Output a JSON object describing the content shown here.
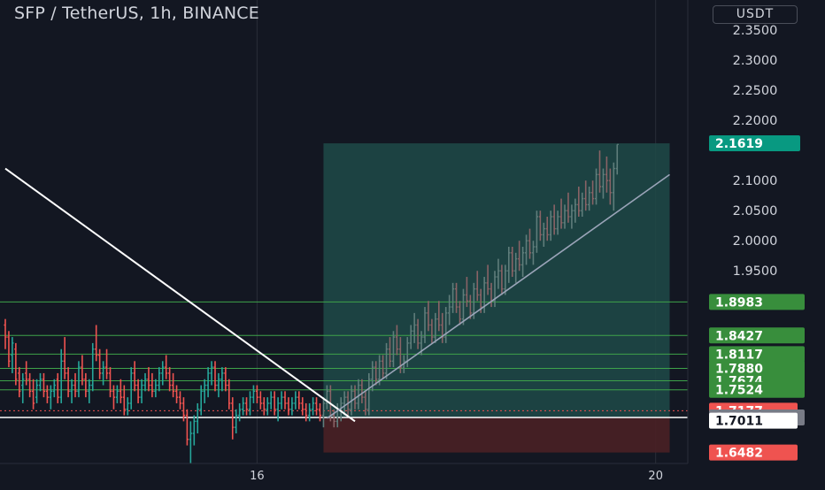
{
  "header": {
    "title": "SFP / TetherUS, 1h, BINANCE",
    "currency": "USDT"
  },
  "chart_data": {
    "type": "candlestick",
    "symbol": "SFP / TetherUS",
    "interval": "1h",
    "exchange": "BINANCE",
    "ylim": [
      1.63,
      2.4
    ],
    "y_ticks": [
      2.35,
      2.3,
      2.25,
      2.2,
      2.1,
      2.05,
      2.0,
      1.95
    ],
    "x_ticks": [
      {
        "label": "16",
        "index": 72
      },
      {
        "label": "20",
        "index": 186
      }
    ],
    "current_price": {
      "value": 2.1619,
      "label": "2.1619"
    },
    "level_labels": [
      {
        "value": 1.8983,
        "label": "1.8983"
      },
      {
        "value": 1.8427,
        "label": "1.8427"
      },
      {
        "value": 1.8117,
        "label": "1.8117"
      },
      {
        "value": 1.788,
        "label": "1.7880"
      },
      {
        "value": 1.7674,
        "label": "1.7674"
      },
      {
        "value": 1.7524,
        "label": "1.7524"
      },
      {
        "value": 1.7177,
        "label": "1.7177"
      },
      {
        "value": 1.7064,
        "label": "1.7064"
      },
      {
        "value": 1.7011,
        "label": "1.7011"
      },
      {
        "value": 1.6482,
        "label": "1.6482"
      }
    ],
    "horizontal_levels": [
      1.8983,
      1.8427,
      1.8117,
      1.788,
      1.7674,
      1.7524
    ],
    "entry_level": 1.7064,
    "dotted_level": 1.7177,
    "position": {
      "entry": 1.7064,
      "target": 2.1619,
      "stop": 1.6482,
      "start_index": 91,
      "end_index": 190
    },
    "downtrend_line": {
      "start": {
        "index": 0,
        "price": 2.12
      },
      "end": {
        "index": 100,
        "price": 1.7
      }
    },
    "uptrend_line": {
      "start": {
        "index": 92,
        "price": 1.705
      },
      "end": {
        "index": 190,
        "price": 2.11
      }
    },
    "colors": {
      "background": "#131722",
      "up": "#26a69a",
      "down": "#ef5350",
      "level_line": "#3ea34a",
      "level_label": "#388e3c",
      "profit_zone": "#1f4a48",
      "loss_zone": "#4a2025",
      "current_price": "#089981",
      "entry_label": "#787b86",
      "text": "#d1d4dc"
    },
    "candles": [
      {
        "o": 1.86,
        "h": 1.87,
        "l": 1.82,
        "c": 1.84
      },
      {
        "o": 1.84,
        "h": 1.85,
        "l": 1.79,
        "c": 1.8
      },
      {
        "o": 1.81,
        "h": 1.84,
        "l": 1.78,
        "c": 1.83
      },
      {
        "o": 1.82,
        "h": 1.83,
        "l": 1.76,
        "c": 1.77
      },
      {
        "o": 1.78,
        "h": 1.79,
        "l": 1.74,
        "c": 1.75
      },
      {
        "o": 1.76,
        "h": 1.78,
        "l": 1.73,
        "c": 1.77
      },
      {
        "o": 1.78,
        "h": 1.8,
        "l": 1.76,
        "c": 1.77
      },
      {
        "o": 1.77,
        "h": 1.78,
        "l": 1.74,
        "c": 1.75
      },
      {
        "o": 1.75,
        "h": 1.77,
        "l": 1.72,
        "c": 1.73
      },
      {
        "o": 1.74,
        "h": 1.77,
        "l": 1.73,
        "c": 1.76
      },
      {
        "o": 1.76,
        "h": 1.78,
        "l": 1.75,
        "c": 1.77
      },
      {
        "o": 1.77,
        "h": 1.78,
        "l": 1.74,
        "c": 1.75
      },
      {
        "o": 1.75,
        "h": 1.76,
        "l": 1.73,
        "c": 1.74
      },
      {
        "o": 1.74,
        "h": 1.76,
        "l": 1.72,
        "c": 1.75
      },
      {
        "o": 1.75,
        "h": 1.77,
        "l": 1.74,
        "c": 1.76
      },
      {
        "o": 1.77,
        "h": 1.78,
        "l": 1.73,
        "c": 1.74
      },
      {
        "o": 1.74,
        "h": 1.82,
        "l": 1.73,
        "c": 1.8
      },
      {
        "o": 1.8,
        "h": 1.84,
        "l": 1.77,
        "c": 1.78
      },
      {
        "o": 1.78,
        "h": 1.79,
        "l": 1.74,
        "c": 1.75
      },
      {
        "o": 1.75,
        "h": 1.77,
        "l": 1.73,
        "c": 1.76
      },
      {
        "o": 1.76,
        "h": 1.78,
        "l": 1.74,
        "c": 1.75
      },
      {
        "o": 1.75,
        "h": 1.8,
        "l": 1.74,
        "c": 1.79
      },
      {
        "o": 1.79,
        "h": 1.81,
        "l": 1.76,
        "c": 1.77
      },
      {
        "o": 1.77,
        "h": 1.78,
        "l": 1.74,
        "c": 1.75
      },
      {
        "o": 1.75,
        "h": 1.77,
        "l": 1.73,
        "c": 1.76
      },
      {
        "o": 1.76,
        "h": 1.83,
        "l": 1.75,
        "c": 1.82
      },
      {
        "o": 1.82,
        "h": 1.86,
        "l": 1.8,
        "c": 1.81
      },
      {
        "o": 1.81,
        "h": 1.82,
        "l": 1.77,
        "c": 1.78
      },
      {
        "o": 1.78,
        "h": 1.8,
        "l": 1.76,
        "c": 1.79
      },
      {
        "o": 1.79,
        "h": 1.82,
        "l": 1.77,
        "c": 1.78
      },
      {
        "o": 1.78,
        "h": 1.79,
        "l": 1.74,
        "c": 1.75
      },
      {
        "o": 1.75,
        "h": 1.76,
        "l": 1.72,
        "c": 1.74
      },
      {
        "o": 1.74,
        "h": 1.76,
        "l": 1.73,
        "c": 1.75
      },
      {
        "o": 1.75,
        "h": 1.77,
        "l": 1.73,
        "c": 1.74
      },
      {
        "o": 1.74,
        "h": 1.76,
        "l": 1.71,
        "c": 1.72
      },
      {
        "o": 1.72,
        "h": 1.74,
        "l": 1.71,
        "c": 1.73
      },
      {
        "o": 1.73,
        "h": 1.79,
        "l": 1.72,
        "c": 1.78
      },
      {
        "o": 1.78,
        "h": 1.8,
        "l": 1.75,
        "c": 1.76
      },
      {
        "o": 1.76,
        "h": 1.77,
        "l": 1.73,
        "c": 1.74
      },
      {
        "o": 1.74,
        "h": 1.77,
        "l": 1.73,
        "c": 1.76
      },
      {
        "o": 1.76,
        "h": 1.78,
        "l": 1.75,
        "c": 1.77
      },
      {
        "o": 1.77,
        "h": 1.79,
        "l": 1.75,
        "c": 1.76
      },
      {
        "o": 1.76,
        "h": 1.78,
        "l": 1.74,
        "c": 1.75
      },
      {
        "o": 1.75,
        "h": 1.77,
        "l": 1.74,
        "c": 1.76
      },
      {
        "o": 1.76,
        "h": 1.79,
        "l": 1.75,
        "c": 1.78
      },
      {
        "o": 1.78,
        "h": 1.8,
        "l": 1.76,
        "c": 1.79
      },
      {
        "o": 1.79,
        "h": 1.81,
        "l": 1.77,
        "c": 1.78
      },
      {
        "o": 1.78,
        "h": 1.79,
        "l": 1.75,
        "c": 1.76
      },
      {
        "o": 1.76,
        "h": 1.78,
        "l": 1.74,
        "c": 1.75
      },
      {
        "o": 1.75,
        "h": 1.76,
        "l": 1.73,
        "c": 1.74
      },
      {
        "o": 1.74,
        "h": 1.75,
        "l": 1.72,
        "c": 1.73
      },
      {
        "o": 1.73,
        "h": 1.74,
        "l": 1.7,
        "c": 1.71
      },
      {
        "o": 1.71,
        "h": 1.72,
        "l": 1.66,
        "c": 1.67
      },
      {
        "o": 1.67,
        "h": 1.7,
        "l": 1.63,
        "c": 1.68
      },
      {
        "o": 1.68,
        "h": 1.71,
        "l": 1.66,
        "c": 1.7
      },
      {
        "o": 1.7,
        "h": 1.73,
        "l": 1.68,
        "c": 1.72
      },
      {
        "o": 1.72,
        "h": 1.76,
        "l": 1.71,
        "c": 1.75
      },
      {
        "o": 1.75,
        "h": 1.77,
        "l": 1.73,
        "c": 1.76
      },
      {
        "o": 1.76,
        "h": 1.79,
        "l": 1.74,
        "c": 1.78
      },
      {
        "o": 1.78,
        "h": 1.8,
        "l": 1.76,
        "c": 1.79
      },
      {
        "o": 1.79,
        "h": 1.8,
        "l": 1.75,
        "c": 1.76
      },
      {
        "o": 1.76,
        "h": 1.78,
        "l": 1.74,
        "c": 1.77
      },
      {
        "o": 1.77,
        "h": 1.79,
        "l": 1.75,
        "c": 1.78
      },
      {
        "o": 1.78,
        "h": 1.79,
        "l": 1.75,
        "c": 1.76
      },
      {
        "o": 1.76,
        "h": 1.77,
        "l": 1.72,
        "c": 1.73
      },
      {
        "o": 1.73,
        "h": 1.74,
        "l": 1.67,
        "c": 1.69
      },
      {
        "o": 1.69,
        "h": 1.72,
        "l": 1.68,
        "c": 1.71
      },
      {
        "o": 1.71,
        "h": 1.73,
        "l": 1.7,
        "c": 1.72
      },
      {
        "o": 1.72,
        "h": 1.74,
        "l": 1.71,
        "c": 1.73
      },
      {
        "o": 1.73,
        "h": 1.74,
        "l": 1.71,
        "c": 1.72
      },
      {
        "o": 1.72,
        "h": 1.75,
        "l": 1.71,
        "c": 1.74
      },
      {
        "o": 1.74,
        "h": 1.76,
        "l": 1.73,
        "c": 1.75
      },
      {
        "o": 1.75,
        "h": 1.76,
        "l": 1.73,
        "c": 1.74
      },
      {
        "o": 1.74,
        "h": 1.75,
        "l": 1.72,
        "c": 1.73
      },
      {
        "o": 1.73,
        "h": 1.74,
        "l": 1.71,
        "c": 1.72
      },
      {
        "o": 1.72,
        "h": 1.74,
        "l": 1.71,
        "c": 1.73
      },
      {
        "o": 1.73,
        "h": 1.75,
        "l": 1.72,
        "c": 1.74
      },
      {
        "o": 1.74,
        "h": 1.75,
        "l": 1.71,
        "c": 1.72
      },
      {
        "o": 1.72,
        "h": 1.74,
        "l": 1.7,
        "c": 1.73
      },
      {
        "o": 1.73,
        "h": 1.75,
        "l": 1.72,
        "c": 1.74
      },
      {
        "o": 1.74,
        "h": 1.75,
        "l": 1.72,
        "c": 1.73
      },
      {
        "o": 1.73,
        "h": 1.74,
        "l": 1.71,
        "c": 1.72
      },
      {
        "o": 1.72,
        "h": 1.74,
        "l": 1.71,
        "c": 1.73
      },
      {
        "o": 1.73,
        "h": 1.75,
        "l": 1.72,
        "c": 1.74
      },
      {
        "o": 1.74,
        "h": 1.75,
        "l": 1.72,
        "c": 1.73
      },
      {
        "o": 1.73,
        "h": 1.74,
        "l": 1.71,
        "c": 1.72
      },
      {
        "o": 1.72,
        "h": 1.73,
        "l": 1.7,
        "c": 1.71
      },
      {
        "o": 1.71,
        "h": 1.73,
        "l": 1.7,
        "c": 1.72
      },
      {
        "o": 1.72,
        "h": 1.74,
        "l": 1.71,
        "c": 1.73
      },
      {
        "o": 1.73,
        "h": 1.74,
        "l": 1.71,
        "c": 1.72
      },
      {
        "o": 1.72,
        "h": 1.73,
        "l": 1.7,
        "c": 1.71
      },
      {
        "o": 1.71,
        "h": 1.74,
        "l": 1.69,
        "c": 1.73
      },
      {
        "o": 1.73,
        "h": 1.76,
        "l": 1.72,
        "c": 1.75
      },
      {
        "o": 1.75,
        "h": 1.76,
        "l": 1.7,
        "c": 1.71
      },
      {
        "o": 1.71,
        "h": 1.72,
        "l": 1.69,
        "c": 1.7
      },
      {
        "o": 1.7,
        "h": 1.73,
        "l": 1.69,
        "c": 1.72
      },
      {
        "o": 1.72,
        "h": 1.74,
        "l": 1.7,
        "c": 1.73
      },
      {
        "o": 1.73,
        "h": 1.75,
        "l": 1.71,
        "c": 1.74
      },
      {
        "o": 1.74,
        "h": 1.75,
        "l": 1.71,
        "c": 1.72
      },
      {
        "o": 1.72,
        "h": 1.76,
        "l": 1.71,
        "c": 1.75
      },
      {
        "o": 1.75,
        "h": 1.76,
        "l": 1.72,
        "c": 1.73
      },
      {
        "o": 1.73,
        "h": 1.77,
        "l": 1.72,
        "c": 1.76
      },
      {
        "o": 1.76,
        "h": 1.77,
        "l": 1.73,
        "c": 1.74
      },
      {
        "o": 1.74,
        "h": 1.75,
        "l": 1.71,
        "c": 1.72
      },
      {
        "o": 1.72,
        "h": 1.78,
        "l": 1.71,
        "c": 1.77
      },
      {
        "o": 1.77,
        "h": 1.8,
        "l": 1.75,
        "c": 1.79
      },
      {
        "o": 1.79,
        "h": 1.8,
        "l": 1.76,
        "c": 1.77
      },
      {
        "o": 1.77,
        "h": 1.81,
        "l": 1.76,
        "c": 1.8
      },
      {
        "o": 1.8,
        "h": 1.81,
        "l": 1.77,
        "c": 1.78
      },
      {
        "o": 1.78,
        "h": 1.83,
        "l": 1.77,
        "c": 1.82
      },
      {
        "o": 1.82,
        "h": 1.84,
        "l": 1.79,
        "c": 1.8
      },
      {
        "o": 1.8,
        "h": 1.85,
        "l": 1.79,
        "c": 1.84
      },
      {
        "o": 1.84,
        "h": 1.86,
        "l": 1.81,
        "c": 1.82
      },
      {
        "o": 1.82,
        "h": 1.84,
        "l": 1.78,
        "c": 1.79
      },
      {
        "o": 1.79,
        "h": 1.81,
        "l": 1.78,
        "c": 1.8
      },
      {
        "o": 1.8,
        "h": 1.84,
        "l": 1.79,
        "c": 1.83
      },
      {
        "o": 1.83,
        "h": 1.86,
        "l": 1.82,
        "c": 1.85
      },
      {
        "o": 1.85,
        "h": 1.88,
        "l": 1.83,
        "c": 1.86
      },
      {
        "o": 1.86,
        "h": 1.87,
        "l": 1.82,
        "c": 1.83
      },
      {
        "o": 1.83,
        "h": 1.85,
        "l": 1.81,
        "c": 1.84
      },
      {
        "o": 1.84,
        "h": 1.89,
        "l": 1.83,
        "c": 1.88
      },
      {
        "o": 1.88,
        "h": 1.9,
        "l": 1.85,
        "c": 1.86
      },
      {
        "o": 1.86,
        "h": 1.87,
        "l": 1.83,
        "c": 1.84
      },
      {
        "o": 1.84,
        "h": 1.88,
        "l": 1.83,
        "c": 1.87
      },
      {
        "o": 1.87,
        "h": 1.9,
        "l": 1.85,
        "c": 1.86
      },
      {
        "o": 1.86,
        "h": 1.88,
        "l": 1.83,
        "c": 1.84
      },
      {
        "o": 1.84,
        "h": 1.89,
        "l": 1.83,
        "c": 1.88
      },
      {
        "o": 1.88,
        "h": 1.91,
        "l": 1.86,
        "c": 1.89
      },
      {
        "o": 1.89,
        "h": 1.93,
        "l": 1.88,
        "c": 1.92
      },
      {
        "o": 1.92,
        "h": 1.93,
        "l": 1.88,
        "c": 1.89
      },
      {
        "o": 1.89,
        "h": 1.9,
        "l": 1.86,
        "c": 1.87
      },
      {
        "o": 1.87,
        "h": 1.92,
        "l": 1.86,
        "c": 1.91
      },
      {
        "o": 1.91,
        "h": 1.94,
        "l": 1.89,
        "c": 1.9
      },
      {
        "o": 1.9,
        "h": 1.91,
        "l": 1.87,
        "c": 1.88
      },
      {
        "o": 1.88,
        "h": 1.93,
        "l": 1.87,
        "c": 1.92
      },
      {
        "o": 1.92,
        "h": 1.95,
        "l": 1.9,
        "c": 1.91
      },
      {
        "o": 1.91,
        "h": 1.92,
        "l": 1.88,
        "c": 1.89
      },
      {
        "o": 1.89,
        "h": 1.94,
        "l": 1.88,
        "c": 1.93
      },
      {
        "o": 1.93,
        "h": 1.96,
        "l": 1.91,
        "c": 1.92
      },
      {
        "o": 1.92,
        "h": 1.93,
        "l": 1.89,
        "c": 1.9
      },
      {
        "o": 1.9,
        "h": 1.95,
        "l": 1.89,
        "c": 1.94
      },
      {
        "o": 1.94,
        "h": 1.97,
        "l": 1.92,
        "c": 1.95
      },
      {
        "o": 1.95,
        "h": 1.96,
        "l": 1.91,
        "c": 1.92
      },
      {
        "o": 1.92,
        "h": 1.96,
        "l": 1.91,
        "c": 1.95
      },
      {
        "o": 1.95,
        "h": 1.99,
        "l": 1.93,
        "c": 1.98
      },
      {
        "o": 1.98,
        "h": 1.99,
        "l": 1.94,
        "c": 1.95
      },
      {
        "o": 1.95,
        "h": 1.98,
        "l": 1.93,
        "c": 1.97
      },
      {
        "o": 1.97,
        "h": 2.0,
        "l": 1.95,
        "c": 1.96
      },
      {
        "o": 1.96,
        "h": 1.99,
        "l": 1.94,
        "c": 1.98
      },
      {
        "o": 1.98,
        "h": 2.01,
        "l": 1.96,
        "c": 2.0
      },
      {
        "o": 2.0,
        "h": 2.02,
        "l": 1.97,
        "c": 1.98
      },
      {
        "o": 1.98,
        "h": 2.0,
        "l": 1.96,
        "c": 1.99
      },
      {
        "o": 1.99,
        "h": 2.05,
        "l": 1.98,
        "c": 2.04
      },
      {
        "o": 2.04,
        "h": 2.05,
        "l": 2.0,
        "c": 2.01
      },
      {
        "o": 2.01,
        "h": 2.03,
        "l": 1.99,
        "c": 2.02
      },
      {
        "o": 2.02,
        "h": 2.04,
        "l": 2.0,
        "c": 2.01
      },
      {
        "o": 2.01,
        "h": 2.05,
        "l": 2.0,
        "c": 2.04
      },
      {
        "o": 2.04,
        "h": 2.06,
        "l": 2.01,
        "c": 2.02
      },
      {
        "o": 2.02,
        "h": 2.05,
        "l": 2.01,
        "c": 2.04
      },
      {
        "o": 2.04,
        "h": 2.07,
        "l": 2.02,
        "c": 2.03
      },
      {
        "o": 2.03,
        "h": 2.06,
        "l": 2.02,
        "c": 2.05
      },
      {
        "o": 2.05,
        "h": 2.08,
        "l": 2.03,
        "c": 2.04
      },
      {
        "o": 2.04,
        "h": 2.06,
        "l": 2.02,
        "c": 2.05
      },
      {
        "o": 2.05,
        "h": 2.07,
        "l": 2.03,
        "c": 2.06
      },
      {
        "o": 2.06,
        "h": 2.09,
        "l": 2.04,
        "c": 2.05
      },
      {
        "o": 2.05,
        "h": 2.08,
        "l": 2.04,
        "c": 2.07
      },
      {
        "o": 2.07,
        "h": 2.1,
        "l": 2.05,
        "c": 2.06
      },
      {
        "o": 2.06,
        "h": 2.09,
        "l": 2.05,
        "c": 2.08
      },
      {
        "o": 2.08,
        "h": 2.1,
        "l": 2.06,
        "c": 2.07
      },
      {
        "o": 2.07,
        "h": 2.12,
        "l": 2.06,
        "c": 2.11
      },
      {
        "o": 2.11,
        "h": 2.15,
        "l": 2.08,
        "c": 2.09
      },
      {
        "o": 2.09,
        "h": 2.12,
        "l": 2.07,
        "c": 2.11
      },
      {
        "o": 2.11,
        "h": 2.14,
        "l": 2.08,
        "c": 2.1
      },
      {
        "o": 2.1,
        "h": 2.12,
        "l": 2.06,
        "c": 2.08
      },
      {
        "o": 2.08,
        "h": 2.13,
        "l": 2.05,
        "c": 2.12
      },
      {
        "o": 2.12,
        "h": 2.16,
        "l": 2.11,
        "c": 2.16
      }
    ]
  }
}
